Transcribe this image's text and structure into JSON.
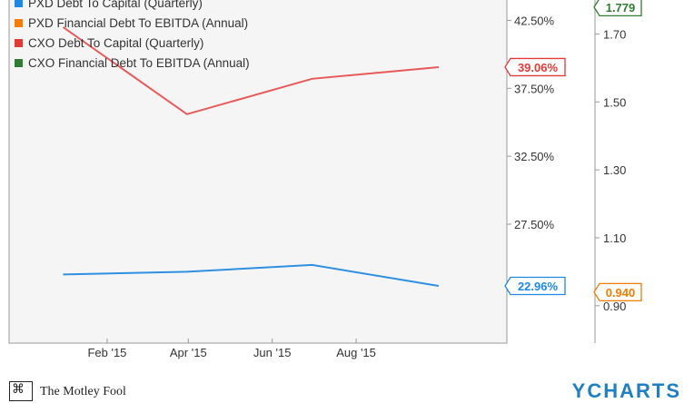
{
  "chart_data": {
    "type": "line",
    "x_ticks": [
      "Feb '15",
      "Apr '15",
      "Jun '15",
      "Aug '15"
    ],
    "axis_left": {
      "ticks": [
        "42.50%",
        "37.50%",
        "32.50%",
        "27.50%"
      ],
      "range": [
        18.75,
        44.0
      ]
    },
    "axis_right": {
      "ticks": [
        "1.70",
        "1.50",
        "1.30",
        "1.10",
        "0.90"
      ],
      "range": [
        0.79,
        1.8
      ]
    },
    "legend": [
      {
        "label": "PXD Debt To Capital (Quarterly)",
        "color": "#1e88e5"
      },
      {
        "label": "PXD Financial Debt To EBITDA (Annual)",
        "color": "#f57c00"
      },
      {
        "label": "CXO Debt To Capital (Quarterly)",
        "color": "#e53935"
      },
      {
        "label": "CXO Financial Debt To EBITDA (Annual)",
        "color": "#2e7d32"
      }
    ],
    "series": [
      {
        "name": "CXO Debt To Capital (Quarterly)",
        "color": "#e85a5a",
        "axis": "left",
        "x": [
          "2014-12-31",
          "2015-03-31",
          "2015-06-30",
          "2015-09-30"
        ],
        "y": [
          42.0,
          35.6,
          38.2,
          39.06
        ]
      },
      {
        "name": "PXD Debt To Capital (Quarterly)",
        "color": "#2f8fe0",
        "axis": "left",
        "x": [
          "2014-12-31",
          "2015-03-31",
          "2015-06-30",
          "2015-09-30"
        ],
        "y": [
          23.8,
          24.0,
          24.5,
          22.96
        ]
      }
    ],
    "callouts": [
      {
        "text": "39.06%",
        "color": "#e53935",
        "axis": "left",
        "value": 39.06
      },
      {
        "text": "22.96%",
        "color": "#1e88e5",
        "axis": "left",
        "value": 22.96
      },
      {
        "text": "0.940",
        "color": "#f57c00",
        "axis": "right",
        "value": 0.94
      },
      {
        "text": "1.779",
        "color": "#2e7d32",
        "axis": "right",
        "value": 1.779
      }
    ]
  },
  "footer": {
    "brand": "The Motley Fool",
    "logo_glyph": "⌘",
    "right_brand": "YCHARTS"
  }
}
